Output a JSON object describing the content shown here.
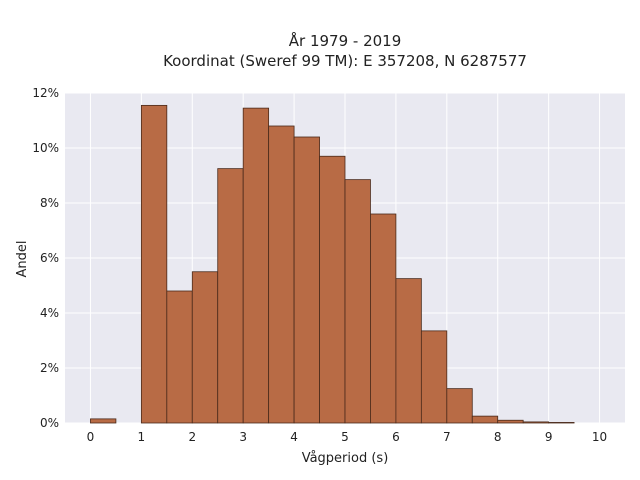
{
  "chart_data": {
    "type": "bar",
    "title_lines": [
      "År 1979 - 2019",
      "Koordinat (Sweref 99 TM): E 357208, N 6287577"
    ],
    "xlabel": "Vågperiod (s)",
    "ylabel": "Andel",
    "xlim": [
      -0.5,
      10.5
    ],
    "ylim": [
      0,
      12
    ],
    "x_ticks": [
      0,
      1,
      2,
      3,
      4,
      5,
      6,
      7,
      8,
      9,
      10
    ],
    "x_tick_labels": [
      "0",
      "1",
      "2",
      "3",
      "4",
      "5",
      "6",
      "7",
      "8",
      "9",
      "10"
    ],
    "y_ticks": [
      0,
      2,
      4,
      6,
      8,
      10,
      12
    ],
    "y_tick_labels": [
      "0%",
      "2%",
      "4%",
      "6%",
      "8%",
      "10%",
      "12%"
    ],
    "bin_width": 0.5,
    "bin_starts": [
      0,
      0.5,
      1,
      1.5,
      2,
      2.5,
      3,
      3.5,
      4,
      4.5,
      5,
      5.5,
      6,
      6.5,
      7,
      7.5,
      8,
      8.5,
      9,
      9.5
    ],
    "values": [
      0.15,
      0,
      11.55,
      4.8,
      5.5,
      9.25,
      11.45,
      10.8,
      10.4,
      9.7,
      8.85,
      7.6,
      5.25,
      3.35,
      1.25,
      0.25,
      0.1,
      0.04,
      0.02,
      0
    ],
    "grid": true,
    "colors": {
      "bar_fill": "#b86b45",
      "bar_edge": "#4a2a1a",
      "plot_bg": "#e9e9f1",
      "grid": "#ffffff"
    }
  }
}
